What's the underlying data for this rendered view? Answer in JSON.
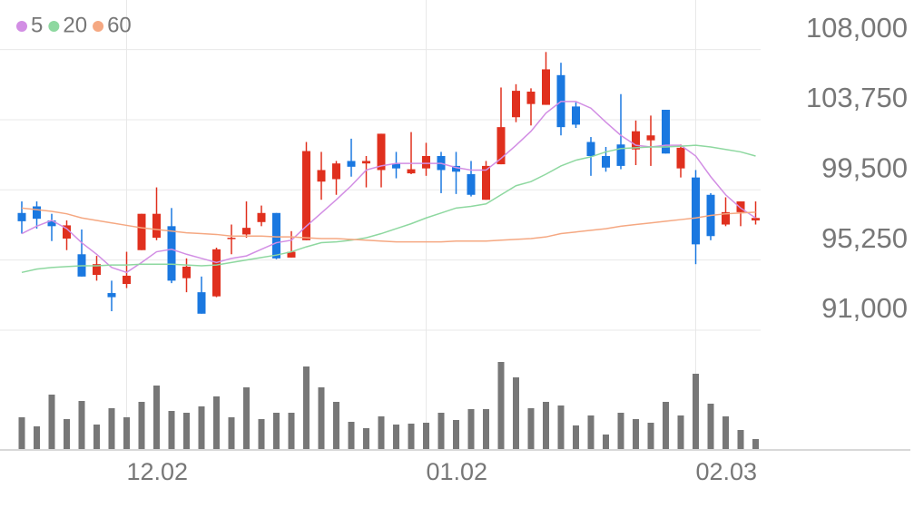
{
  "chart_data": {
    "type": "candlestick",
    "categories": [
      null,
      null,
      null,
      null,
      null,
      null,
      null,
      "12.02",
      null,
      null,
      null,
      null,
      null,
      null,
      null,
      null,
      null,
      null,
      null,
      null,
      null,
      null,
      null,
      null,
      null,
      null,
      null,
      "01.02",
      null,
      null,
      null,
      null,
      null,
      null,
      null,
      null,
      null,
      null,
      null,
      null,
      null,
      null,
      null,
      null,
      null,
      "02.03",
      null,
      null,
      null,
      null
    ],
    "open": [
      98100,
      98500,
      97650,
      96550,
      95600,
      94350,
      93250,
      93800,
      95850,
      96600,
      97300,
      94150,
      93300,
      93050,
      96550,
      96800,
      97550,
      98100,
      95400,
      96450,
      100000,
      100150,
      101250,
      101100,
      100700,
      101100,
      100500,
      100800,
      101550,
      100950,
      100450,
      98900,
      101050,
      103900,
      104700,
      104650,
      106450,
      104550,
      102400,
      101550,
      102250,
      101950,
      102500,
      104350,
      100800,
      100250,
      99200,
      97400,
      98150,
      97650
    ],
    "high": [
      98800,
      98800,
      98050,
      97650,
      97100,
      95500,
      94000,
      95750,
      98050,
      99650,
      98400,
      95350,
      94250,
      96000,
      97400,
      98800,
      98550,
      98100,
      97000,
      102400,
      101800,
      101250,
      102600,
      101550,
      102900,
      101800,
      103000,
      102350,
      101800,
      101800,
      101250,
      101250,
      105700,
      105900,
      105650,
      107850,
      107200,
      104800,
      102700,
      102100,
      105300,
      103700,
      104000,
      104350,
      102250,
      100700,
      99300,
      99050,
      98800,
      98800
    ],
    "low": [
      96850,
      97150,
      96400,
      95850,
      94250,
      94000,
      92150,
      93550,
      95850,
      96450,
      93850,
      93300,
      92000,
      93000,
      95600,
      96600,
      97300,
      95300,
      95400,
      96450,
      98900,
      99200,
      100300,
      99650,
      99650,
      100200,
      100450,
      100350,
      99300,
      99250,
      99100,
      98900,
      101050,
      103600,
      103400,
      104650,
      102800,
      103250,
      100350,
      100600,
      100750,
      101000,
      100950,
      101700,
      100250,
      95000,
      96450,
      97300,
      97300,
      97400
    ],
    "close": [
      97600,
      97750,
      97300,
      97350,
      94250,
      95000,
      93000,
      94300,
      98050,
      98050,
      94000,
      94850,
      92000,
      95900,
      96600,
      97200,
      98100,
      95350,
      95750,
      101850,
      100700,
      101100,
      100900,
      101250,
      102900,
      100800,
      100750,
      101550,
      100700,
      100600,
      99200,
      100950,
      103300,
      105500,
      105450,
      106800,
      103300,
      103450,
      101550,
      100850,
      100950,
      103050,
      102800,
      101700,
      102050,
      96200,
      96700,
      98150,
      98800,
      97800
    ],
    "up_color": "#e0301e",
    "down_color": "#1a78e0",
    "series": [
      {
        "name": "5",
        "color": "#d28ee4",
        "values": [
          96850,
          97300,
          97650,
          97150,
          96300,
          95600,
          94800,
          94500,
          95100,
          95750,
          95900,
          95600,
          95350,
          95100,
          95350,
          95500,
          95900,
          96300,
          96450,
          97300,
          98100,
          98900,
          99750,
          100700,
          100950,
          101100,
          101100,
          101100,
          101100,
          100850,
          100700,
          100700,
          101400,
          102200,
          103050,
          104150,
          104850,
          104850,
          104450,
          103600,
          102800,
          102200,
          102100,
          102200,
          102200,
          101550,
          100300,
          99200,
          98400,
          97800
        ]
      },
      {
        "name": "20",
        "color": "#8ed8a0",
        "values": [
          94500,
          94700,
          94800,
          94850,
          94900,
          94900,
          94950,
          94950,
          95000,
          95000,
          95000,
          94950,
          94900,
          94950,
          95100,
          95250,
          95400,
          95550,
          95750,
          96050,
          96300,
          96350,
          96450,
          96600,
          96850,
          97150,
          97450,
          97800,
          98100,
          98400,
          98500,
          98650,
          99200,
          99750,
          100000,
          100450,
          100950,
          101300,
          101500,
          101800,
          102000,
          102050,
          102100,
          102100,
          102150,
          102200,
          102100,
          101950,
          101800,
          101550
        ]
      },
      {
        "name": "60",
        "color": "#f5a882",
        "values": [
          98400,
          98300,
          98200,
          98050,
          97800,
          97650,
          97500,
          97350,
          97200,
          97100,
          97000,
          96900,
          96850,
          96800,
          96700,
          96700,
          96700,
          96650,
          96650,
          96600,
          96550,
          96550,
          96500,
          96450,
          96400,
          96350,
          96350,
          96350,
          96350,
          96400,
          96400,
          96400,
          96450,
          96500,
          96550,
          96650,
          96850,
          96950,
          97050,
          97150,
          97300,
          97400,
          97500,
          97600,
          97700,
          97800,
          97950,
          98050,
          98100,
          98150
        ]
      }
    ],
    "ylim": [
      91000,
      111000
    ],
    "yticks": [
      {
        "value": 91000,
        "label": "91,000"
      },
      {
        "value": 95250,
        "label": "95,250"
      },
      {
        "value": 99500,
        "label": "99,500"
      },
      {
        "value": 103750,
        "label": "103,750"
      },
      {
        "value": 108000,
        "label": "108,000"
      }
    ],
    "volume": {
      "values": [
        35,
        25,
        60,
        33,
        53,
        27,
        45,
        35,
        52,
        70,
        42,
        40,
        47,
        58,
        35,
        68,
        33,
        40,
        40,
        91,
        68,
        52,
        30,
        23,
        36,
        27,
        28,
        29,
        40,
        32,
        44,
        44,
        96,
        79,
        45,
        52,
        48,
        26,
        37,
        16,
        40,
        33,
        29,
        52,
        37,
        83,
        50,
        36,
        21,
        11
      ],
      "color": "#777777",
      "ylim": [
        0,
        100
      ]
    },
    "grid": true
  }
}
